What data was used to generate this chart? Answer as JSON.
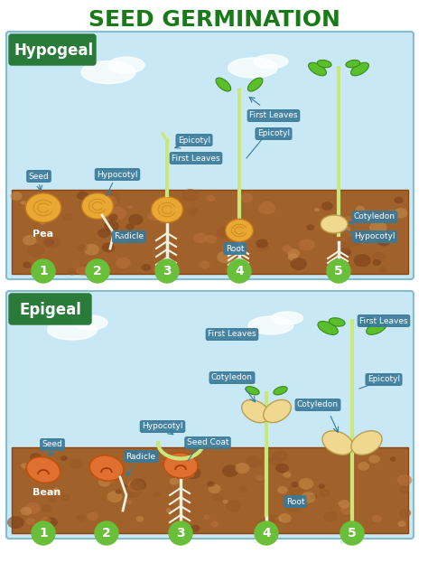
{
  "title": "SEED GERMINATION",
  "title_color": "#1a7a1a",
  "title_fontsize": 18,
  "bg_color": "#ffffff",
  "panel1_label": "Hypogeal",
  "panel2_label": "Epigeal",
  "panel_label_color": "#ffffff",
  "panel_label_bg": "#2a7a3a",
  "sky_color": "#c8e8f5",
  "soil_color": "#a0622a",
  "soil_dark": "#8b4513",
  "soil_light": "#c8874a",
  "stage_circle_color": "#6abf3a",
  "stage_text_color": "#ffffff",
  "label_box_color": "#3a7a9a",
  "label_text_color": "#ffffff",
  "stem_color": "#c8e87a",
  "root_color": "#f0f0e0",
  "leaf_color": "#5abf2a",
  "seed_pea_color": "#e8a832",
  "seed_bean_color": "#e07030",
  "cotyledon_color": "#f0d890",
  "hypogeal_labels": [
    "Seed",
    "Hypocotyl",
    "Radicle",
    "Epicotyl",
    "First Leaves",
    "Epicotyl",
    "First Leaves",
    "Cotyledon",
    "Hypocotyl",
    "Root",
    "Pea"
  ],
  "epigeal_labels": [
    "Seed",
    "Radicle",
    "Hypocotyl",
    "Seed Coat",
    "Cotyledon",
    "First Leaves",
    "Epicotyl",
    "Cotyledon",
    "Root",
    "Bean"
  ],
  "stages": [
    "1",
    "2",
    "3",
    "4",
    "5"
  ],
  "watermark_color": "#d0d0d0"
}
